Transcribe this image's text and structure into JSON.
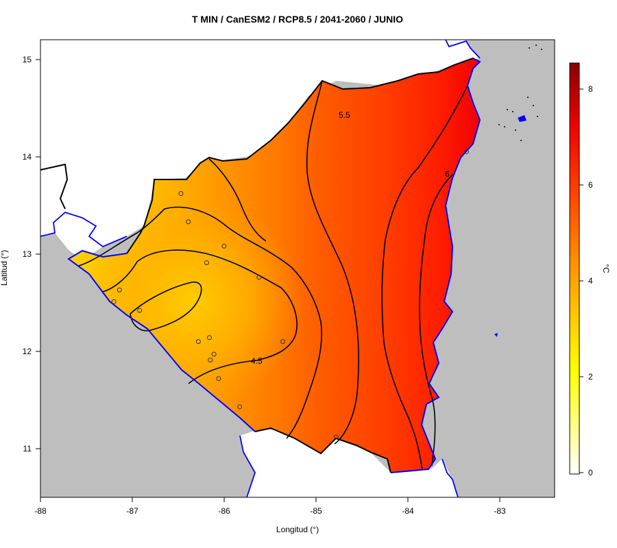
{
  "title": "T MIN / CanESM2 / RCP8.5 / 2041-2060 / JUNIO",
  "xlabel": "Longitud (°)",
  "ylabel": "Latitud (°)",
  "colorbar_label": "°C",
  "x_ticks": [
    "-88",
    "-87",
    "-86",
    "-85",
    "-84",
    "-83"
  ],
  "y_ticks": [
    "11",
    "12",
    "13",
    "14",
    "15"
  ],
  "colorbar_ticks": [
    "0",
    "2",
    "4",
    "6",
    "8"
  ],
  "contour_labels": [
    "4.5",
    "5.5",
    "6"
  ],
  "colors": {
    "ocean_gray": "#bebebe",
    "coastline": "#0000ff",
    "colormap": [
      "#ffffff",
      "#ffff00",
      "#ffa500",
      "#ff4500",
      "#ff0000",
      "#8b0000"
    ]
  },
  "chart_data": {
    "type": "heatmap",
    "title": "T MIN / CanESM2 / RCP8.5 / 2041-2060 / JUNIO",
    "xlabel": "Longitud (°)",
    "ylabel": "Latitud (°)",
    "xlim": [
      -88,
      -82.4
    ],
    "ylim": [
      10.5,
      15.2
    ],
    "colorbar": {
      "label": "°C",
      "range": [
        0,
        8.5
      ],
      "ticks": [
        0,
        2,
        4,
        6,
        8
      ]
    },
    "contour_levels": [
      4.0,
      4.5,
      5.0,
      5.5,
      6.0
    ],
    "stations": [
      {
        "lon": -86.47,
        "lat": 13.62
      },
      {
        "lon": -86.39,
        "lat": 13.33
      },
      {
        "lon": -86.0,
        "lat": 13.08
      },
      {
        "lon": -86.19,
        "lat": 12.91
      },
      {
        "lon": -85.62,
        "lat": 12.76
      },
      {
        "lon": -87.14,
        "lat": 12.63
      },
      {
        "lon": -87.2,
        "lat": 12.51
      },
      {
        "lon": -86.92,
        "lat": 12.42
      },
      {
        "lon": -86.16,
        "lat": 12.14
      },
      {
        "lon": -86.28,
        "lat": 12.1
      },
      {
        "lon": -85.36,
        "lat": 12.1
      },
      {
        "lon": -86.11,
        "lat": 11.97
      },
      {
        "lon": -86.15,
        "lat": 11.91
      },
      {
        "lon": -86.06,
        "lat": 11.72
      },
      {
        "lon": -85.83,
        "lat": 11.43
      },
      {
        "lon": -84.78,
        "lat": 11.12
      },
      {
        "lon": -83.36,
        "lat": 14.05
      }
    ]
  }
}
